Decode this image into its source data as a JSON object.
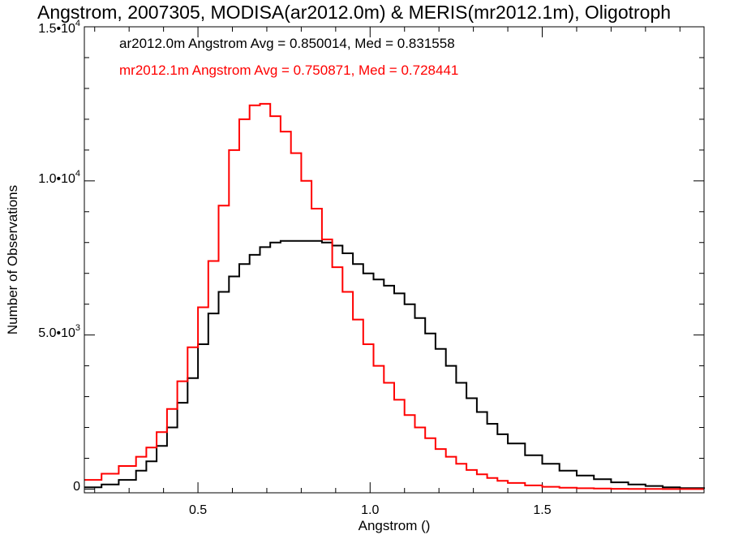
{
  "chart_data": {
    "type": "histogram-step",
    "title": "Angstrom, 2007305, MODISA(ar2012.0m) & MERIS(mr2012.1m), Oligotroph",
    "xlabel": "Angstrom ()",
    "ylabel": "Number of Observations",
    "xlim": [
      0.17,
      1.97
    ],
    "ylim": [
      -120,
      15000
    ],
    "x_ticks": [
      0.5,
      1.0,
      1.5
    ],
    "x_tick_labels": [
      "0.5",
      "1.0",
      "1.5"
    ],
    "y_ticks": [
      {
        "value": 0,
        "mant": "0",
        "exp": ""
      },
      {
        "value": 5000,
        "mant": "5.0•10",
        "exp": "3"
      },
      {
        "value": 10000,
        "mant": "1.0•10",
        "exp": "4"
      },
      {
        "value": 15000,
        "mant": "1.5•10",
        "exp": "4"
      }
    ],
    "grid": false,
    "legend": {
      "placement": "top-left",
      "entries": [
        {
          "text": "ar2012.0m Angstrom Avg = 0.850014, Med = 0.831558",
          "color": "#000000"
        },
        {
          "text": "mr2012.1m Angstrom Avg = 0.750871, Med = 0.728441",
          "color": "#ff0000"
        }
      ]
    },
    "series": [
      {
        "color": "#000000",
        "x": [
          0.17,
          0.22,
          0.27,
          0.32,
          0.35,
          0.38,
          0.41,
          0.44,
          0.47,
          0.5,
          0.53,
          0.56,
          0.59,
          0.62,
          0.65,
          0.68,
          0.71,
          0.74,
          0.77,
          0.8,
          0.83,
          0.86,
          0.89,
          0.92,
          0.95,
          0.98,
          1.01,
          1.04,
          1.07,
          1.1,
          1.13,
          1.16,
          1.19,
          1.22,
          1.25,
          1.28,
          1.31,
          1.34,
          1.37,
          1.4,
          1.45,
          1.5,
          1.55,
          1.6,
          1.65,
          1.7,
          1.75,
          1.8,
          1.85,
          1.9,
          1.97
        ],
        "y": [
          60,
          150,
          300,
          600,
          900,
          1400,
          2000,
          2800,
          3600,
          4700,
          5700,
          6400,
          6900,
          7300,
          7600,
          7850,
          8000,
          8050,
          8050,
          8050,
          8050,
          8000,
          7900,
          7650,
          7300,
          7000,
          6800,
          6600,
          6350,
          6000,
          5550,
          5050,
          4550,
          4000,
          3450,
          2950,
          2500,
          2120,
          1780,
          1480,
          1100,
          820,
          600,
          440,
          320,
          220,
          150,
          100,
          60,
          30,
          10
        ]
      },
      {
        "color": "#ff0000",
        "x": [
          0.17,
          0.22,
          0.27,
          0.32,
          0.35,
          0.38,
          0.41,
          0.44,
          0.47,
          0.5,
          0.53,
          0.56,
          0.59,
          0.62,
          0.65,
          0.68,
          0.71,
          0.74,
          0.77,
          0.8,
          0.83,
          0.86,
          0.89,
          0.92,
          0.95,
          0.98,
          1.01,
          1.04,
          1.07,
          1.1,
          1.13,
          1.16,
          1.19,
          1.22,
          1.25,
          1.28,
          1.31,
          1.34,
          1.37,
          1.4,
          1.45,
          1.5,
          1.55,
          1.6,
          1.65,
          1.7,
          1.75,
          1.8,
          1.85,
          1.9,
          1.97
        ],
        "y": [
          300,
          500,
          750,
          1050,
          1350,
          1850,
          2600,
          3500,
          4600,
          5900,
          7400,
          9200,
          11000,
          12000,
          12450,
          12500,
          12100,
          11600,
          10900,
          10000,
          9100,
          8100,
          7200,
          6400,
          5500,
          4700,
          4000,
          3450,
          2900,
          2400,
          2000,
          1650,
          1300,
          1050,
          820,
          620,
          480,
          360,
          270,
          200,
          120,
          75,
          45,
          28,
          16,
          10,
          5,
          3,
          2,
          1,
          0
        ]
      }
    ]
  }
}
